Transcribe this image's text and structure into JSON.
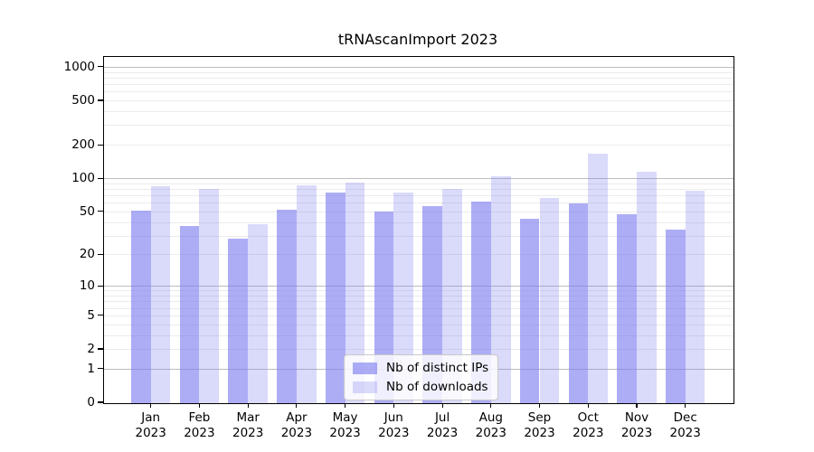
{
  "figure": {
    "title": "tRNAscanImport 2023"
  },
  "chart_data": {
    "type": "bar",
    "title": "tRNAscanImport 2023",
    "xlabel": "",
    "ylabel": "",
    "y_scale": "log10(value+1)",
    "ylim": [
      0,
      1240
    ],
    "grid": true,
    "legend_position": "lower-center-inside",
    "y_ticks": [
      {
        "value": 1000,
        "label": "1000"
      },
      {
        "value": 500,
        "label": "500"
      },
      {
        "value": 200,
        "label": "200"
      },
      {
        "value": 100,
        "label": "100"
      },
      {
        "value": 50,
        "label": "50"
      },
      {
        "value": 20,
        "label": "20"
      },
      {
        "value": 10,
        "label": "10"
      },
      {
        "value": 5,
        "label": "5"
      },
      {
        "value": 2,
        "label": "2"
      },
      {
        "value": 1,
        "label": "1"
      },
      {
        "value": 0,
        "label": "0"
      }
    ],
    "gridlines_major": [
      1,
      10,
      100,
      1000
    ],
    "gridlines_minor": [
      2,
      3,
      4,
      5,
      6,
      7,
      8,
      9,
      20,
      30,
      40,
      50,
      60,
      70,
      80,
      90,
      200,
      300,
      400,
      500,
      600,
      700,
      800,
      900
    ],
    "categories": [
      {
        "month": "Jan",
        "year": "2023"
      },
      {
        "month": "Feb",
        "year": "2023"
      },
      {
        "month": "Mar",
        "year": "2023"
      },
      {
        "month": "Apr",
        "year": "2023"
      },
      {
        "month": "May",
        "year": "2023"
      },
      {
        "month": "Jun",
        "year": "2023"
      },
      {
        "month": "Jul",
        "year": "2023"
      },
      {
        "month": "Aug",
        "year": "2023"
      },
      {
        "month": "Sep",
        "year": "2023"
      },
      {
        "month": "Oct",
        "year": "2023"
      },
      {
        "month": "Nov",
        "year": "2023"
      },
      {
        "month": "Dec",
        "year": "2023"
      }
    ],
    "series": [
      {
        "name": "Nb of distinct IPs",
        "color": "#7b7bf0",
        "alpha": 0.62,
        "values": [
          51,
          37,
          28,
          52,
          74,
          50,
          56,
          61,
          43,
          59,
          47,
          34
        ]
      },
      {
        "name": "Nb of downloads",
        "color": "#7b7bf0",
        "alpha": 0.28,
        "values": [
          85,
          80,
          38,
          86,
          92,
          74,
          80,
          104,
          66,
          165,
          114,
          77
        ]
      }
    ],
    "colors": {
      "grid_major": "#bdbdbd",
      "grid_minor": "#ebebeb",
      "axis": "#000000",
      "background": "#ffffff"
    }
  }
}
